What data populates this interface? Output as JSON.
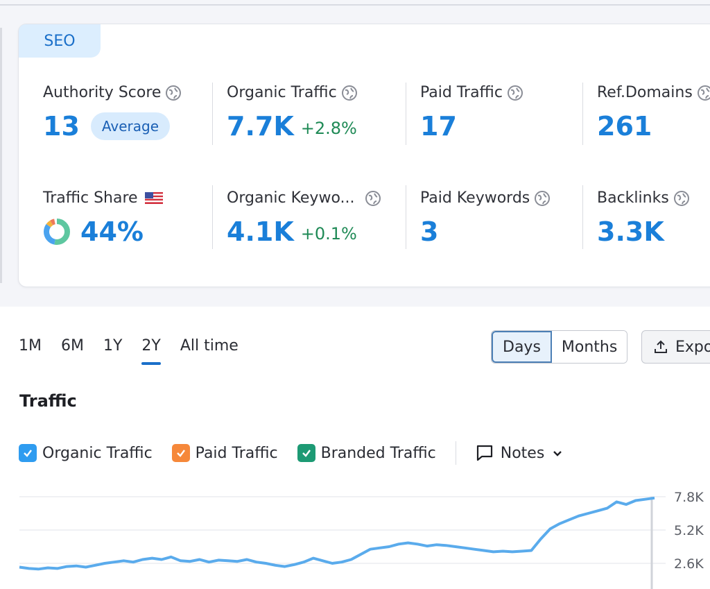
{
  "seo_tab": "SEO",
  "metrics_row1": [
    {
      "label": "Authority Score",
      "value": "13",
      "badge": "Average"
    },
    {
      "label": "Organic Traffic",
      "value": "7.7K",
      "change": "+2.8%"
    },
    {
      "label": "Paid Traffic",
      "value": "17"
    },
    {
      "label": "Ref.Domains",
      "value": "261"
    }
  ],
  "metrics_row2": [
    {
      "label": "Traffic Share",
      "value": "44%"
    },
    {
      "label": "Organic Keywo...",
      "value": "4.1K",
      "change": "+0.1%"
    },
    {
      "label": "Paid Keywords",
      "value": "3"
    },
    {
      "label": "Backlinks",
      "value": "3.3K"
    }
  ],
  "periods": [
    "1M",
    "6M",
    "1Y",
    "2Y",
    "All time"
  ],
  "active_period": "2Y",
  "view_toggle": {
    "days": "Days",
    "months": "Months",
    "active": "Days"
  },
  "export_label": "Expo",
  "section_title": "Traffic",
  "legend": [
    {
      "label": "Organic Traffic",
      "color": "#2f9cf0",
      "checked": true
    },
    {
      "label": "Paid Traffic",
      "color": "#f6883a",
      "checked": true
    },
    {
      "label": "Branded Traffic",
      "color": "#1d9a74",
      "checked": true
    }
  ],
  "notes_label": "Notes",
  "chart_data": {
    "type": "line",
    "series": [
      {
        "name": "Organic Traffic",
        "color": "#5aabec",
        "values": [
          2300,
          2200,
          2150,
          2250,
          2200,
          2350,
          2400,
          2300,
          2450,
          2600,
          2700,
          2800,
          2700,
          2900,
          3000,
          2900,
          3100,
          2800,
          2750,
          2900,
          2700,
          2850,
          2800,
          2750,
          2900,
          2700,
          2600,
          2450,
          2350,
          2500,
          2700,
          3000,
          2800,
          2600,
          2700,
          2900,
          3300,
          3700,
          3800,
          3900,
          4100,
          4200,
          4100,
          3950,
          4050,
          4000,
          3900,
          3800,
          3700,
          3600,
          3500,
          3550,
          3500,
          3550,
          3600,
          4500,
          5300,
          5700,
          6000,
          6300,
          6500,
          6700,
          6900,
          7400,
          7200,
          7500,
          7600,
          7700
        ]
      }
    ],
    "yticks": [
      "7.8K",
      "5.2K",
      "2.6K"
    ],
    "ylim": [
      0,
      7800
    ]
  },
  "colors": {
    "accent": "#1a7fd9",
    "positive": "#1f8a56",
    "badge_bg": "#d8ebfd"
  }
}
